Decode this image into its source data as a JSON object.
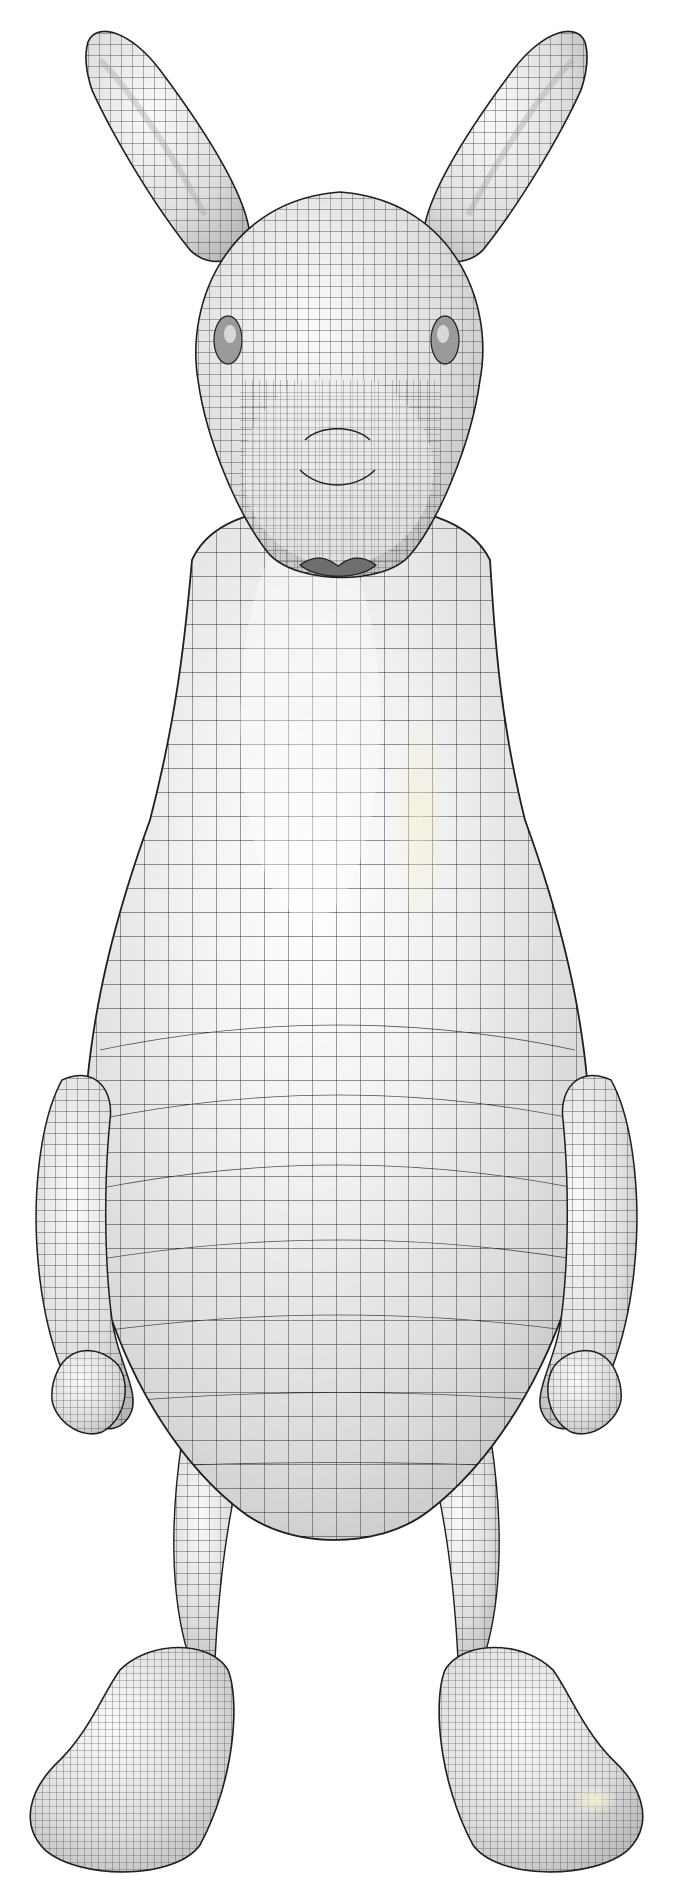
{
  "image": {
    "subject": "kangaroo-quad-mesh-render",
    "background_color": "#ffffff",
    "surface_color": "#e9e9e9",
    "highlight_color": "#ffffff",
    "shadow_color": "#bdbdbd",
    "warm_highlight_color": "#f3edd2",
    "wire_color": "#2a2a2a"
  }
}
